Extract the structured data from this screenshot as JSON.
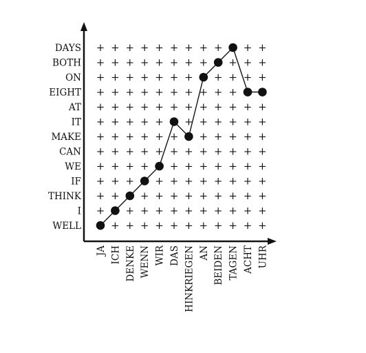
{
  "chart_data": {
    "type": "scatter",
    "x_categories": [
      "JA",
      "ICH",
      "DENKE",
      "WENN",
      "WIR",
      "DAS",
      "HINKRIEGEN",
      "AN",
      "BEIDEN",
      "TAGEN",
      "ACHT",
      "UHR"
    ],
    "y_categories": [
      "WELL",
      "I",
      "THINK",
      "IF",
      "WE",
      "CAN",
      "MAKE",
      "IT",
      "AT",
      "EIGHT",
      "ON",
      "BOTH",
      "DAYS"
    ],
    "alignment_path": [
      {
        "x": "JA",
        "y": "WELL"
      },
      {
        "x": "ICH",
        "y": "I"
      },
      {
        "x": "DENKE",
        "y": "THINK"
      },
      {
        "x": "WENN",
        "y": "IF"
      },
      {
        "x": "WIR",
        "y": "WE"
      },
      {
        "x": "DAS",
        "y": "IT"
      },
      {
        "x": "HINKRIEGEN",
        "y": "MAKE"
      },
      {
        "x": "AN",
        "y": "ON"
      },
      {
        "x": "BEIDEN",
        "y": "BOTH"
      },
      {
        "x": "TAGEN",
        "y": "DAYS"
      },
      {
        "x": "ACHT",
        "y": "EIGHT"
      },
      {
        "x": "UHR",
        "y": "EIGHT"
      }
    ],
    "grid_marker": "+",
    "grid": true,
    "colors": {
      "ink": "#111111",
      "background": "#ffffff"
    }
  }
}
